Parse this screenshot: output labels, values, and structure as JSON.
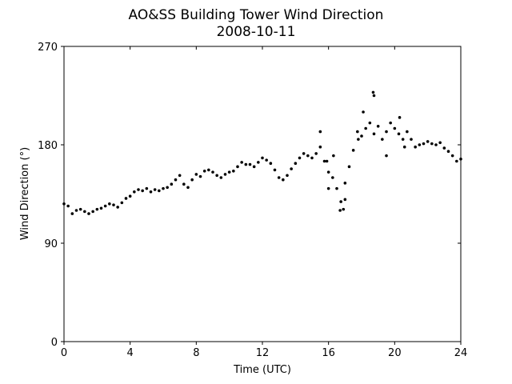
{
  "chart_data": {
    "type": "scatter",
    "title": "AO&SS Building Tower Wind Direction",
    "subtitle": "2008-10-11",
    "x_label": "Time (UTC)",
    "y_label": "Wind Direction (°)",
    "color": "#000000",
    "xlim": [
      0,
      24
    ],
    "xticks": [
      0,
      4,
      8,
      12,
      16,
      20,
      24
    ],
    "ylim": [
      0,
      270
    ],
    "yticks": [
      0,
      90,
      180,
      270
    ],
    "x": [
      0,
      0.25,
      0.5,
      0.75,
      1,
      1.25,
      1.5,
      1.75,
      2,
      2.25,
      2.5,
      2.75,
      3,
      3.25,
      3.5,
      3.75,
      4,
      4.25,
      4.5,
      4.75,
      5,
      5.25,
      5.5,
      5.75,
      6,
      6.25,
      6.5,
      6.75,
      7,
      7.25,
      7.5,
      7.75,
      8,
      8.25,
      8.5,
      8.75,
      9,
      9.25,
      9.5,
      9.75,
      10,
      10.25,
      10.5,
      10.75,
      11,
      11.25,
      11.5,
      11.75,
      12,
      12.25,
      12.5,
      12.75,
      13,
      13.25,
      13.5,
      13.75,
      14,
      14.25,
      14.5,
      14.75,
      15,
      15.25,
      15.5,
      15.75,
      16,
      16.25,
      16.5,
      16.75,
      17,
      17.25,
      17.5,
      17.75,
      18,
      18.25,
      18.5,
      18.75,
      19,
      19.25,
      19.5,
      19.75,
      20,
      20.25,
      20.5,
      20.75,
      21,
      21.25,
      21.5,
      21.75,
      22,
      22.25,
      22.5,
      22.75,
      23,
      23.25,
      23.5,
      23.75,
      24,
      15.5,
      16.0,
      16.7,
      16.9,
      18.1,
      18.7,
      18.75,
      19.5,
      20.3,
      17.8,
      15.9,
      16.3,
      17.0,
      20.6
    ],
    "values": [
      126,
      124,
      117,
      120,
      121,
      119,
      117,
      119,
      121,
      122,
      124,
      126,
      125,
      123,
      127,
      131,
      133,
      137,
      139,
      138,
      140,
      137,
      139,
      138,
      140,
      141,
      144,
      148,
      152,
      144,
      141,
      148,
      153,
      151,
      156,
      157,
      155,
      152,
      150,
      153,
      155,
      156,
      160,
      164,
      162,
      162,
      160,
      164,
      168,
      166,
      163,
      157,
      150,
      148,
      152,
      158,
      163,
      168,
      172,
      170,
      168,
      172,
      178,
      165,
      155,
      150,
      140,
      128,
      145,
      160,
      175,
      192,
      188,
      195,
      200,
      190,
      197,
      185,
      192,
      200,
      195,
      190,
      185,
      192,
      185,
      178,
      180,
      181,
      183,
      181,
      180,
      182,
      177,
      174,
      170,
      165,
      167,
      192,
      140,
      120,
      121,
      210,
      228,
      225,
      170,
      205,
      185,
      165,
      170,
      130,
      178
    ]
  }
}
